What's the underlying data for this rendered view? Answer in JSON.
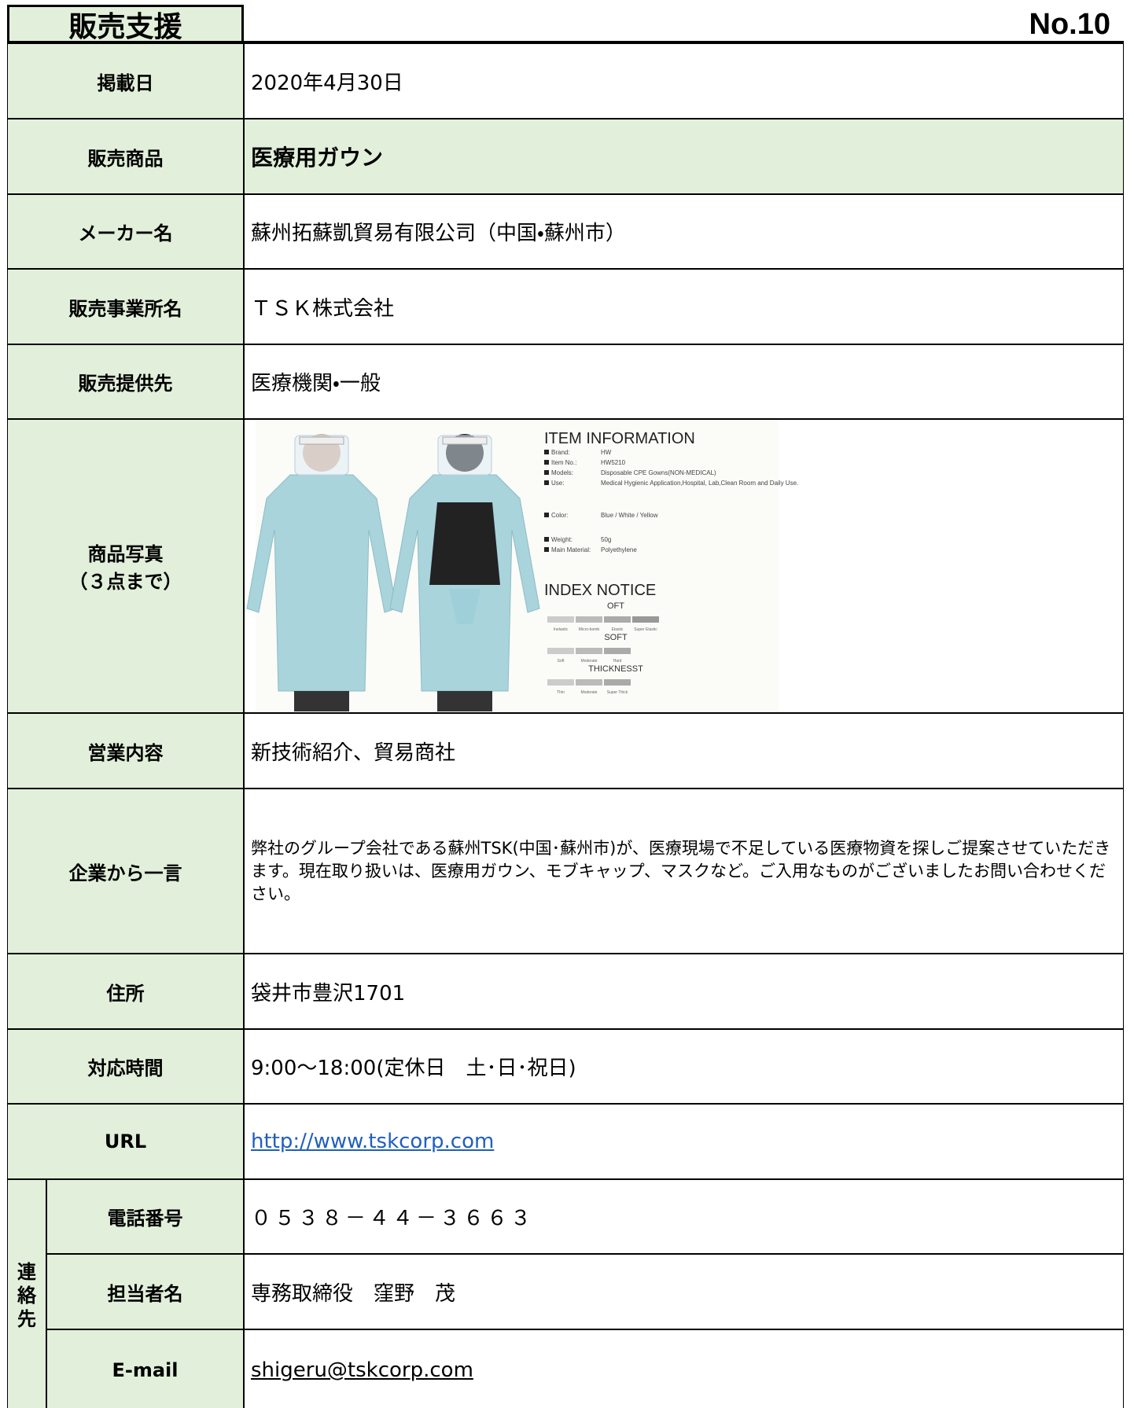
{
  "header": {
    "title": "販売支援",
    "number": "No.10"
  },
  "rows": [
    {
      "label": "掲載日",
      "value": "2020年4月30日"
    },
    {
      "label": "販売商品",
      "value": "医療用ガウン"
    },
    {
      "label": "メーカー名",
      "value": "蘇州拓蘇凱貿易有限公司（中国・蘇州市）"
    },
    {
      "label": "販売事業所名",
      "value": "ＴＳＫ株式会社"
    },
    {
      "label": "販売提供先",
      "value": "医療機関・一般"
    },
    {
      "label": [
        "商品写真",
        "（３点まで）"
      ]
    },
    {
      "label": "営業内容",
      "value": "新技術紹介、貿易商社"
    },
    {
      "label": "企業から一言",
      "value": "弊社のグループ会社である蘇州TSK(中国･蘇州市)が、医療現場で不足している医療物資を探しご提案させていただきます。現在取り扱いは、医療用ガウン、モブキャップ、マスクなど。ご入用なものがございましたお問い合わせください。"
    },
    {
      "label": "住所",
      "value": "袋井市豊沢1701"
    },
    {
      "label": "対応時間",
      "value": "9:00〜18:00(定休日　土･日･祝日)"
    },
    {
      "label": "URL",
      "value": "http://www.tskcorp.com"
    }
  ],
  "photo": {
    "info_title": "ITEM INFORMATION",
    "info": [
      [
        "Brand:",
        "HW"
      ],
      [
        "Item No.:",
        "HW5210"
      ],
      [
        "Models:",
        "Disposable CPE Gowns(NON-MEDICAL)"
      ],
      [
        "Use:",
        "Medical Hygienic Application,Hospital, Lab,Clean Room and Daily Use."
      ],
      [
        "Color:",
        "Blue / White / Yellow"
      ],
      [
        "Weight:",
        "50g"
      ],
      [
        "Main Material:",
        "Polyethylene"
      ]
    ],
    "index_title": "INDEX NOTICE",
    "scales": [
      {
        "name": "OFT",
        "levels": [
          "Inelastic",
          "Micro-bomb",
          "Elastic",
          "Super Elastic"
        ]
      },
      {
        "name": "SOFT",
        "levels": [
          "Soft",
          "Moderate",
          "Hard"
        ]
      },
      {
        "name": "THICKNESST",
        "levels": [
          "Thin",
          "Moderate",
          "Super Thick"
        ]
      }
    ]
  },
  "contact": {
    "label": [
      "連",
      "絡",
      "先"
    ],
    "rows": [
      {
        "label": "電話番号",
        "value": "０５３８－４４－３６６３"
      },
      {
        "label": "担当者名",
        "value": "専務取締役　窪野　茂"
      },
      {
        "label": "E-mail",
        "value": "shigeru@tskcorp.com"
      }
    ]
  }
}
